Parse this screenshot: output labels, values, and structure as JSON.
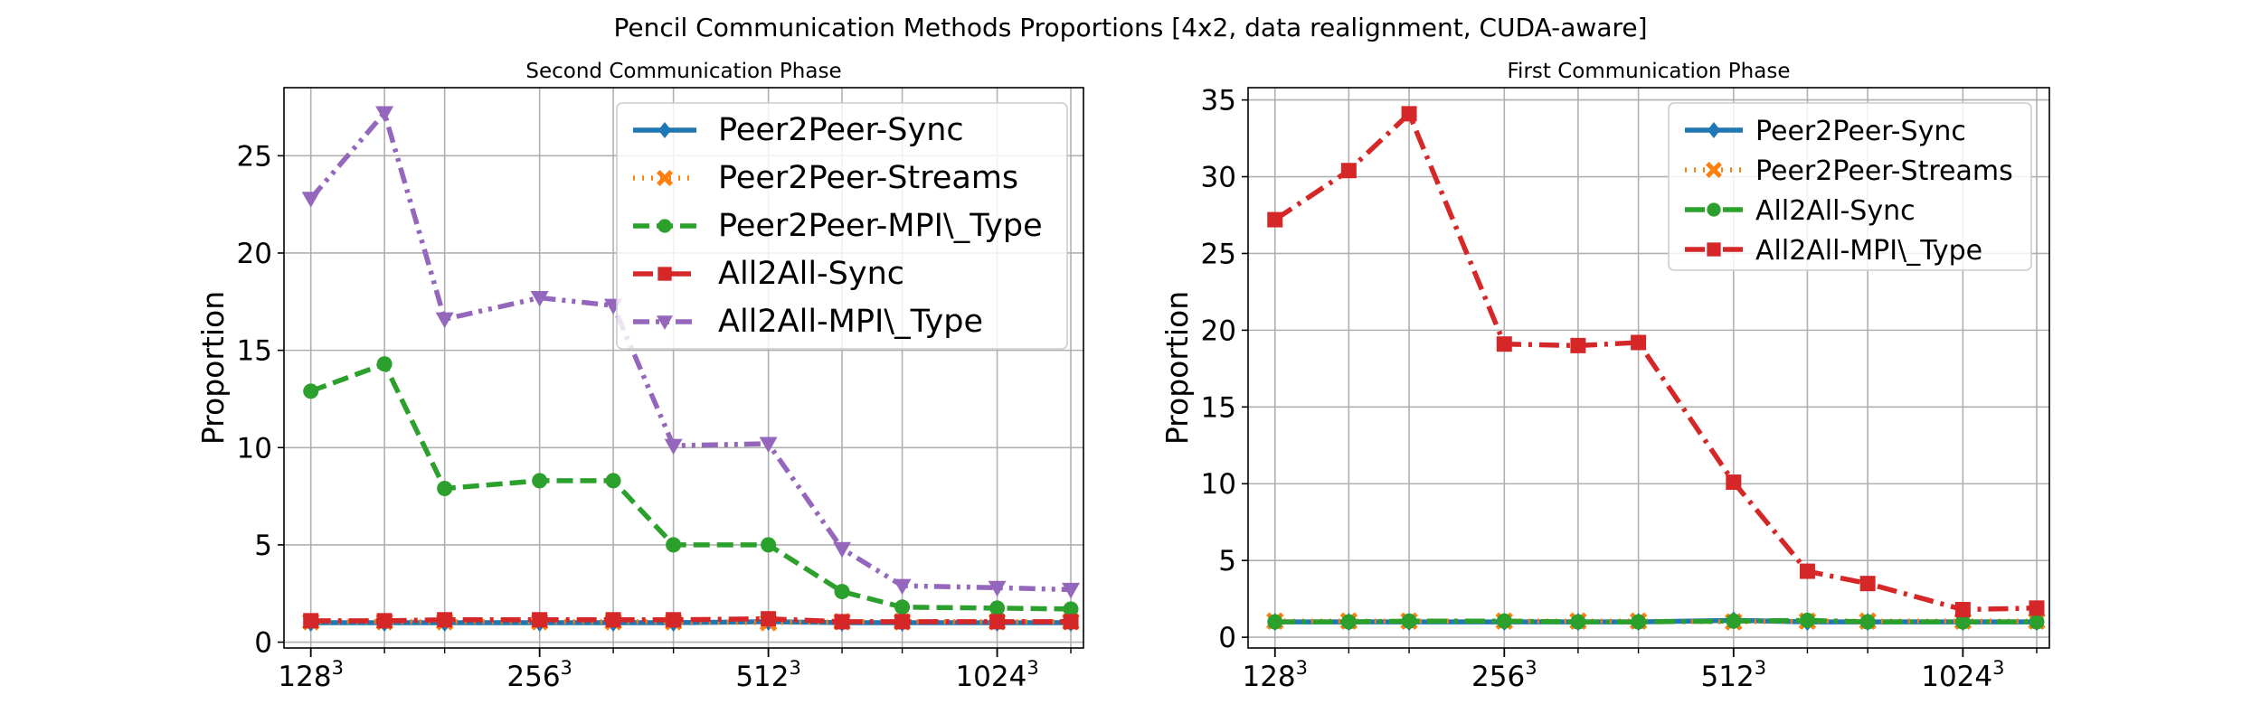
{
  "suptitle": "Pencil Communication Methods Proportions [4x2, data realignment, CUDA-aware]",
  "chart_data": [
    {
      "type": "line",
      "title": "Second Communication Phase",
      "ylabel": "Proportion",
      "xlabel": "",
      "x_tick_labels": [
        {
          "base": "128",
          "exp": "3"
        },
        {
          "base": "256",
          "exp": "3"
        },
        {
          "base": "512",
          "exp": "3"
        },
        {
          "base": "1024",
          "exp": "3"
        }
      ],
      "x_tick_positions": [
        128,
        256,
        512,
        1024
      ],
      "x": [
        128,
        160,
        192,
        256,
        320,
        384,
        512,
        640,
        768,
        1024,
        1280
      ],
      "xlim": [
        118,
        1330
      ],
      "ylim": [
        -0.3,
        28.5
      ],
      "yticks": [
        0,
        5,
        10,
        15,
        20,
        25
      ],
      "grid": true,
      "legend_placement": "upper-right",
      "series": [
        {
          "name": "Peer2Peer-Sync",
          "color": "#1f77b4",
          "marker": "diamond",
          "dash": "solid",
          "values": [
            1.0,
            1.0,
            1.0,
            1.0,
            1.0,
            1.0,
            1.05,
            1.0,
            1.0,
            1.0,
            1.0
          ]
        },
        {
          "name": "Peer2Peer-Streams",
          "color": "#ff7f0e",
          "marker": "x",
          "dash": "dotted",
          "values": [
            1.05,
            1.05,
            1.05,
            1.05,
            1.05,
            1.05,
            1.0,
            1.05,
            1.05,
            1.05,
            1.05
          ]
        },
        {
          "name": "Peer2Peer-MPI\\_Type",
          "color": "#2ca02c",
          "marker": "circle",
          "dash": "dashed",
          "values": [
            12.9,
            14.3,
            7.9,
            8.3,
            8.3,
            5.0,
            5.0,
            2.6,
            1.8,
            1.75,
            1.7
          ]
        },
        {
          "name": "All2All-Sync",
          "color": "#d62728",
          "marker": "square",
          "dash": "dashdot",
          "values": [
            1.1,
            1.1,
            1.15,
            1.15,
            1.15,
            1.15,
            1.2,
            1.05,
            1.05,
            1.05,
            1.05
          ]
        },
        {
          "name": "All2All-MPI\\_Type",
          "color": "#9467bd",
          "marker": "triangle-down",
          "dash": "dashdotdot",
          "values": [
            22.8,
            27.2,
            16.6,
            17.7,
            17.3,
            10.1,
            10.2,
            4.8,
            2.9,
            2.8,
            2.7
          ]
        }
      ]
    },
    {
      "type": "line",
      "title": "First Communication Phase",
      "ylabel": "Proportion",
      "xlabel": "",
      "x_tick_labels": [
        {
          "base": "128",
          "exp": "3"
        },
        {
          "base": "256",
          "exp": "3"
        },
        {
          "base": "512",
          "exp": "3"
        },
        {
          "base": "1024",
          "exp": "3"
        }
      ],
      "x_tick_positions": [
        128,
        256,
        512,
        1024
      ],
      "x": [
        128,
        160,
        192,
        256,
        320,
        384,
        512,
        640,
        768,
        1024,
        1280
      ],
      "xlim": [
        118,
        1330
      ],
      "ylim": [
        -0.7,
        35.8
      ],
      "yticks": [
        0,
        5,
        10,
        15,
        20,
        25,
        30,
        35
      ],
      "grid": true,
      "legend_placement": "upper-right",
      "series": [
        {
          "name": "Peer2Peer-Sync",
          "color": "#1f77b4",
          "marker": "diamond",
          "dash": "solid",
          "values": [
            1.0,
            1.0,
            1.0,
            1.0,
            1.0,
            1.0,
            1.1,
            1.0,
            1.0,
            1.0,
            1.0
          ]
        },
        {
          "name": "Peer2Peer-Streams",
          "color": "#ff7f0e",
          "marker": "x",
          "dash": "dotted",
          "values": [
            1.05,
            1.05,
            1.05,
            1.05,
            1.05,
            1.05,
            1.0,
            1.05,
            1.05,
            1.05,
            1.05
          ]
        },
        {
          "name": "All2All-Sync",
          "color": "#2ca02c",
          "marker": "circle",
          "dash": "dashdot",
          "values": [
            1.0,
            1.0,
            1.05,
            1.05,
            1.0,
            1.0,
            1.05,
            1.1,
            1.0,
            1.0,
            1.0
          ]
        },
        {
          "name": "All2All-MPI\\_Type",
          "color": "#d62728",
          "marker": "square",
          "dash": "dashdot",
          "values": [
            27.2,
            30.4,
            34.1,
            19.1,
            19.0,
            19.2,
            10.1,
            4.3,
            3.5,
            1.8,
            1.9
          ]
        }
      ]
    }
  ]
}
